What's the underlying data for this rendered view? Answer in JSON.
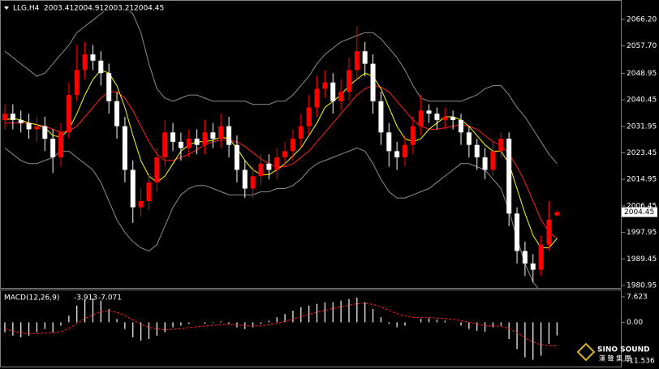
{
  "chart_data": [
    {
      "type": "candlestick",
      "symbol": "LLG,H4",
      "open": [
        2034,
        2036,
        2034,
        2033,
        2031,
        2032,
        2028,
        2022,
        2030,
        2042,
        2050,
        2055,
        2053,
        2049,
        2040,
        2032,
        2018,
        2006,
        2008,
        2014,
        2022,
        2030,
        2027,
        2025,
        2028,
        2026,
        2030,
        2028,
        2032,
        2026,
        2018,
        2012,
        2016,
        2020,
        2018,
        2022,
        2024,
        2028,
        2032,
        2038,
        2044,
        2046,
        2040,
        2043,
        2050,
        2056,
        2052,
        2040,
        2030,
        2024,
        2022,
        2026,
        2032,
        2037,
        2036,
        2034,
        2035,
        2034,
        2030,
        2026,
        2022,
        2018,
        2024,
        2028,
        2004,
        1992,
        1988,
        1986,
        1994,
        2003.41
      ],
      "high": [
        2039,
        2039,
        2037,
        2036,
        2035,
        2035,
        2031,
        2033,
        2046,
        2058,
        2059,
        2058,
        2056,
        2052,
        2043,
        2035,
        2021,
        2012,
        2017,
        2025,
        2034,
        2033,
        2030,
        2031,
        2031,
        2034,
        2033,
        2036,
        2035,
        2029,
        2021,
        2019,
        2023,
        2023,
        2025,
        2027,
        2031,
        2036,
        2042,
        2048,
        2050,
        2049,
        2047,
        2054,
        2064,
        2059,
        2055,
        2043,
        2033,
        2027,
        2029,
        2035,
        2042,
        2039,
        2038,
        2038,
        2037,
        2036,
        2032,
        2028,
        2025,
        2027,
        2030,
        2030,
        2006,
        1995,
        1991,
        1997,
        2008,
        2004.91
      ],
      "low": [
        2031,
        2031,
        2030,
        2028,
        2027,
        2024,
        2017,
        2019,
        2028,
        2040,
        2047,
        2050,
        2045,
        2036,
        2028,
        2014,
        2001,
        2003,
        2005,
        2011,
        2019,
        2024,
        2021,
        2022,
        2023,
        2023,
        2025,
        2025,
        2022,
        2014,
        2009,
        2009,
        2013,
        2015,
        2015,
        2019,
        2021,
        2025,
        2029,
        2035,
        2041,
        2036,
        2037,
        2040,
        2047,
        2048,
        2036,
        2026,
        2019,
        2018,
        2019,
        2023,
        2029,
        2033,
        2031,
        2031,
        2031,
        2026,
        2022,
        2018,
        2015,
        2016,
        2022,
        2000,
        1988,
        1984,
        1982,
        1984,
        1992,
        2003.21
      ],
      "close": [
        2036,
        2034,
        2033,
        2031,
        2032,
        2028,
        2022,
        2030,
        2042,
        2050,
        2055,
        2053,
        2049,
        2040,
        2032,
        2018,
        2006,
        2008,
        2014,
        2022,
        2030,
        2027,
        2025,
        2028,
        2026,
        2030,
        2028,
        2032,
        2026,
        2018,
        2012,
        2016,
        2020,
        2018,
        2022,
        2024,
        2028,
        2032,
        2038,
        2044,
        2046,
        2040,
        2043,
        2050,
        2056,
        2052,
        2040,
        2030,
        2024,
        2022,
        2026,
        2032,
        2037,
        2036,
        2034,
        2035,
        2034,
        2030,
        2026,
        2022,
        2018,
        2024,
        2028,
        2004,
        1992,
        1988,
        1986,
        1994,
        2002,
        2004.45
      ],
      "up_color": "#ff0000",
      "down_color": "#ffffff",
      "overlays": [
        {
          "color": "#8c8c8c",
          "values": [
            2056,
            2054,
            2052,
            2050,
            2048,
            2049,
            2052,
            2055,
            2058,
            2062,
            2064,
            2066,
            2068,
            2070,
            2070,
            2070,
            2068,
            2062,
            2052,
            2044,
            2041,
            2040,
            2041,
            2042,
            2042,
            2041,
            2040,
            2040,
            2040,
            2040,
            2040,
            2039,
            2039,
            2039,
            2040,
            2040,
            2042,
            2045,
            2048,
            2052,
            2055,
            2057,
            2059,
            2060,
            2061,
            2062,
            2062,
            2060,
            2057,
            2054,
            2050,
            2045,
            2041,
            2040,
            2040,
            2040,
            2040,
            2040,
            2041,
            2042,
            2044,
            2045,
            2045,
            2042,
            2038,
            2035,
            2031,
            2027,
            2023,
            2020
          ]
        },
        {
          "color": "#8c8c8c",
          "values": [
            2025,
            2023,
            2021,
            2020,
            2020,
            2021,
            2022,
            2024,
            2024,
            2022,
            2020,
            2018,
            2014,
            2008,
            2002,
            1998,
            1995,
            1993,
            1992,
            1994,
            2000,
            2006,
            2010,
            2012,
            2013,
            2013,
            2012,
            2011,
            2010,
            2010,
            2010,
            2010,
            2011,
            2011,
            2012,
            2012,
            2013,
            2015,
            2018,
            2020,
            2021,
            2022,
            2023,
            2024,
            2025,
            2024,
            2020,
            2015,
            2011,
            2009,
            2009,
            2010,
            2011,
            2012,
            2014,
            2016,
            2018,
            2020,
            2020,
            2019,
            2018,
            2015,
            2012,
            2005,
            1996,
            1988,
            1982,
            1979,
            1978,
            1977
          ]
        },
        {
          "color": "#ff2020",
          "values": [
            2033,
            2033,
            2033,
            2033,
            2032.5,
            2032,
            2031,
            2030,
            2030.5,
            2032,
            2035,
            2038,
            2041,
            2043,
            2043,
            2041,
            2037,
            2032,
            2027,
            2023,
            2021,
            2021,
            2022,
            2023,
            2024.5,
            2026,
            2027,
            2027.5,
            2027.5,
            2027,
            2025.5,
            2023.5,
            2021.5,
            2020,
            2019,
            2019,
            2020,
            2022,
            2024,
            2027,
            2030,
            2033,
            2036,
            2039,
            2042,
            2044,
            2045,
            2044.5,
            2043,
            2040,
            2037,
            2034,
            2032,
            2031,
            2031,
            2031.5,
            2032,
            2032.5,
            2032,
            2031,
            2029,
            2027,
            2026,
            2023,
            2019,
            2014,
            2008,
            2002,
            1998,
            1996
          ]
        },
        {
          "color": "#ffff00",
          "values": [
            2034,
            2034.5,
            2034,
            2033,
            2032.5,
            2031.5,
            2029,
            2028.5,
            2031,
            2036,
            2042,
            2047,
            2050,
            2049,
            2045,
            2038,
            2029,
            2021,
            2016,
            2014,
            2016,
            2020,
            2024,
            2026,
            2027,
            2027,
            2027.5,
            2028.5,
            2028,
            2025,
            2021,
            2018,
            2016.5,
            2016.5,
            2018,
            2020,
            2022.5,
            2025,
            2029,
            2033,
            2038,
            2040,
            2042,
            2045,
            2047,
            2049,
            2048,
            2044,
            2038,
            2032,
            2028,
            2027,
            2028,
            2031,
            2033,
            2035,
            2035,
            2034,
            2032,
            2029,
            2026,
            2024,
            2024,
            2020,
            2012,
            2004,
            1997,
            1993,
            1993,
            1996
          ]
        }
      ],
      "ylim": [
        1980.17,
        2068.8
      ],
      "yticks": [
        {
          "value": 2066.2,
          "label": "2066.20"
        },
        {
          "value": 2057.7,
          "label": "2057.70"
        },
        2048.95,
        2040.45,
        2031.95,
        2023.45,
        2014.95,
        2006.45,
        1997.95,
        1989.45,
        1980.95
      ]
    },
    {
      "type": "macd",
      "label": "MACD(12,26,9)",
      "histogram": {
        "color": "#ffffff",
        "values": [
          -3,
          -4,
          -4.5,
          -4,
          -3,
          -2,
          -3,
          -1,
          2,
          5,
          7,
          7.2,
          6.5,
          4,
          1,
          -2,
          -4.5,
          -5.5,
          -5,
          -4,
          -3,
          -1.5,
          -1,
          -0.5,
          0,
          -0.5,
          -0.2,
          0.3,
          -0.5,
          -1.5,
          -2,
          -1.5,
          -0.5,
          0.5,
          1.5,
          2.5,
          3.5,
          4.5,
          5,
          5.5,
          6,
          6,
          6.5,
          7,
          7.4,
          6,
          4,
          1.5,
          -0.5,
          -1.5,
          -1,
          0,
          1,
          1.2,
          0.8,
          0.5,
          0,
          -1,
          -2,
          -2.5,
          -2.8,
          -1.5,
          -1,
          -5,
          -8,
          -10.5,
          -11.2,
          -10,
          -6.5,
          -3.913
        ]
      },
      "signal": {
        "color": "#ff2020",
        "values": [
          -2,
          -2.6,
          -3.1,
          -3.4,
          -3.4,
          -3.2,
          -3.2,
          -2.8,
          -1.8,
          -0.4,
          1.1,
          2.3,
          3.2,
          3.4,
          3,
          2,
          0.7,
          -0.6,
          -1.5,
          -2,
          -2.2,
          -2.1,
          -1.9,
          -1.6,
          -1.3,
          -1.1,
          -0.9,
          -0.7,
          -0.6,
          -0.8,
          -1,
          -1.1,
          -1,
          -0.7,
          -0.3,
          0.3,
          1,
          1.7,
          2.4,
          3,
          3.6,
          4.1,
          4.6,
          5.1,
          5.6,
          5.7,
          5.4,
          4.6,
          3.6,
          2.6,
          1.9,
          1.5,
          1.4,
          1.4,
          1.3,
          1.1,
          0.9,
          0.5,
          0,
          -0.5,
          -1,
          -1.1,
          -1.1,
          -1.9,
          -3.1,
          -4.6,
          -5.9,
          -6.7,
          -7,
          -7.071
        ]
      },
      "ylim": [
        -13.24,
        9.57
      ],
      "yticks": [
        7.623,
        {
          "value": 0,
          "label": "0.00"
        },
        -11.536
      ]
    }
  ],
  "logo": {
    "name": "SINO SOUND",
    "subtitle": "漢 聲 集 團"
  }
}
